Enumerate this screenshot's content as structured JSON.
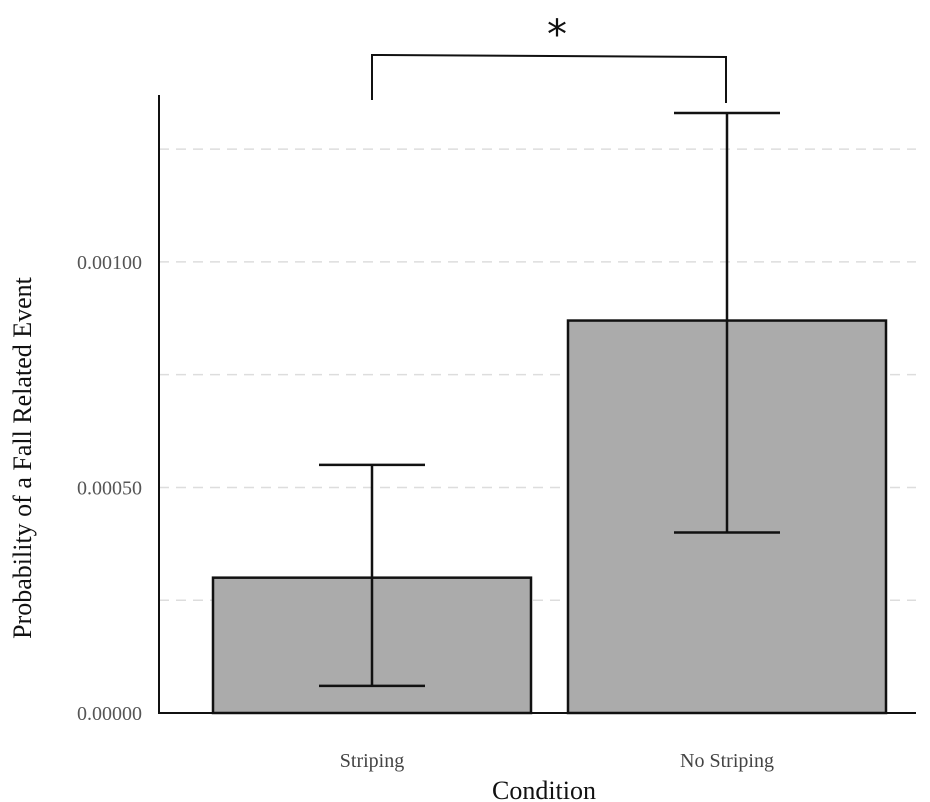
{
  "chart_data": {
    "type": "bar",
    "title": "",
    "xlabel": "Condition",
    "ylabel": "Probability of a Fall Related Event",
    "categories": [
      "Striping",
      "No Striping"
    ],
    "values": [
      0.0003,
      0.00087
    ],
    "error_low": [
      6e-05,
      0.0004
    ],
    "error_high": [
      0.00055,
      0.00133
    ],
    "ylim": [
      0,
      0.00137
    ],
    "yticks": [
      {
        "value": 0,
        "label": "0.00000"
      },
      {
        "value": 0.0005,
        "label": "0.00050"
      },
      {
        "value": 0.001,
        "label": "0.00100"
      }
    ],
    "minor_gridlines": [
      0.00025,
      0.00075,
      0.00125
    ],
    "grid": true,
    "bar_color": "#ababab",
    "bar_edge_color": "#111111",
    "significance": {
      "between": [
        0,
        1
      ],
      "label": "*"
    }
  }
}
